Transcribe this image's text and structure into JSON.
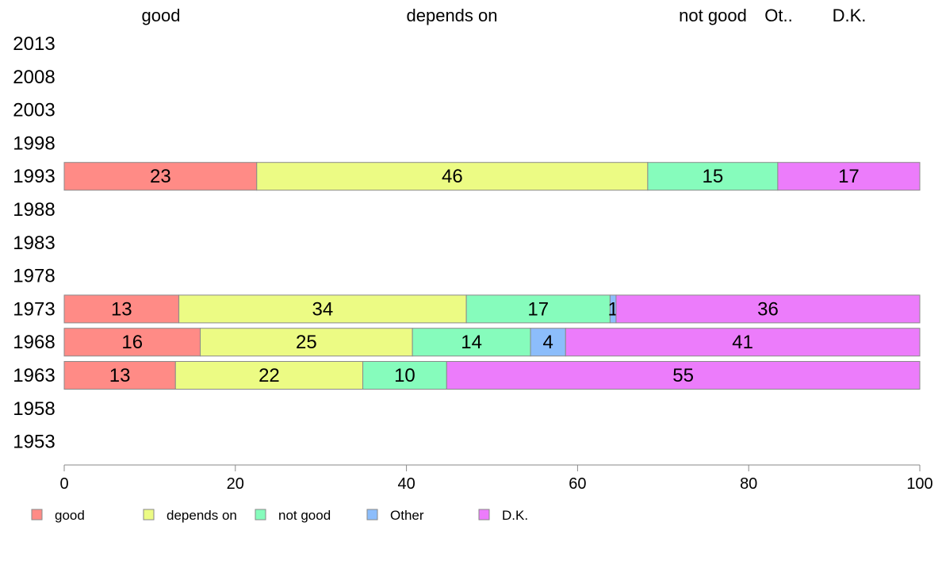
{
  "chart_data": {
    "type": "bar",
    "orientation": "horizontal",
    "stacked": true,
    "title": "",
    "xlabel": "",
    "ylabel": "",
    "xlim": [
      0,
      100
    ],
    "xticks": [
      0,
      20,
      40,
      60,
      80,
      100
    ],
    "grid": false,
    "legend_position": "bottom",
    "categories": [
      "2013",
      "2008",
      "2003",
      "1998",
      "1993",
      "1988",
      "1983",
      "1978",
      "1973",
      "1968",
      "1963",
      "1958",
      "1953"
    ],
    "top_labels": [
      "good",
      "depends on",
      "not good",
      "Ot..",
      "D.K."
    ],
    "series": [
      {
        "name": "good",
        "color": "#ff8b86",
        "values": [
          null,
          null,
          null,
          null,
          22.5,
          null,
          null,
          null,
          13.4,
          15.9,
          13.0,
          null,
          null
        ],
        "labels": [
          "",
          "",
          "",
          "",
          "23",
          "",
          "",
          "",
          "13",
          "16",
          "13",
          "",
          ""
        ]
      },
      {
        "name": "depends on",
        "color": "#ecfb84",
        "values": [
          null,
          null,
          null,
          null,
          45.7,
          null,
          null,
          null,
          33.6,
          24.8,
          21.9,
          null,
          null
        ],
        "labels": [
          "",
          "",
          "",
          "",
          "46",
          "",
          "",
          "",
          "34",
          "25",
          "22",
          "",
          ""
        ]
      },
      {
        "name": "not good",
        "color": "#86fcbc",
        "values": [
          null,
          null,
          null,
          null,
          15.2,
          null,
          null,
          null,
          16.8,
          13.8,
          9.8,
          null,
          null
        ],
        "labels": [
          "",
          "",
          "",
          "",
          "15",
          "",
          "",
          "",
          "17",
          "14",
          "10",
          "",
          ""
        ]
      },
      {
        "name": "Other",
        "color": "#8cbdfb",
        "values": [
          null,
          null,
          null,
          null,
          0,
          null,
          null,
          null,
          0.7,
          4.1,
          0,
          null,
          null
        ],
        "labels": [
          "",
          "",
          "",
          "",
          "",
          "",
          "",
          "",
          "1",
          "4",
          "",
          "",
          ""
        ]
      },
      {
        "name": "D.K.",
        "color": "#ec7cfb",
        "values": [
          null,
          null,
          null,
          null,
          16.6,
          null,
          null,
          null,
          35.5,
          41.4,
          55.3,
          null,
          null
        ],
        "labels": [
          "",
          "",
          "",
          "",
          "17",
          "",
          "",
          "",
          "36",
          "41",
          "55",
          "",
          ""
        ]
      }
    ]
  }
}
